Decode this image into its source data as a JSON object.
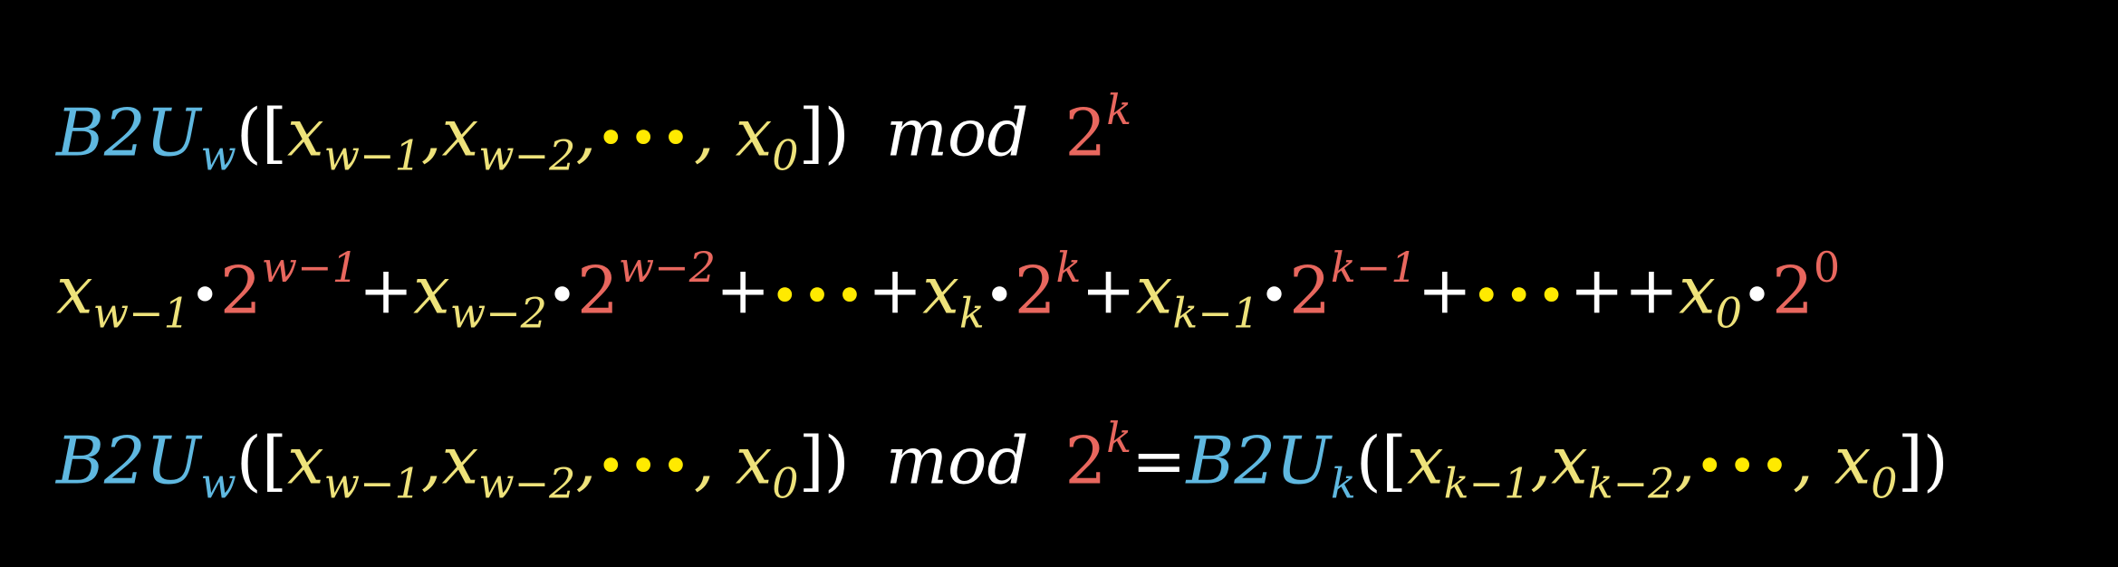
{
  "line1": {
    "func": "B2U",
    "func_sub": "w",
    "open": "([",
    "x": "x",
    "s1": "w−1",
    "s2": "w−2",
    "s0": "0",
    "comma": ",",
    "ellipsis": "•••",
    "close": "])",
    "mod": "mod",
    "base": "2",
    "exp": "k"
  },
  "line2": {
    "x": "x",
    "dot": "•",
    "plus": "+",
    "two": "2",
    "ellipsis": "•••",
    "plusplus": "++",
    "t1_sub": "w−1",
    "t1_exp": "w−1",
    "t2_sub": "w−2",
    "t2_exp": "w−2",
    "t3_sub": "k",
    "t3_exp": "k",
    "t4_sub": "k−1",
    "t4_exp": "k−1",
    "t5_sub": "0",
    "t5_exp": "0"
  },
  "line3": {
    "func": "B2U",
    "func_sub": "w",
    "open": "([",
    "x": "x",
    "s1": "w−1",
    "s2": "w−2",
    "s0": "0",
    "comma": ",",
    "ellipsis": "•••",
    "close": "])",
    "mod": "mod",
    "base": "2",
    "exp": "k",
    "eq": "=",
    "func2_sub": "k",
    "r1": "k−1",
    "r2": "k−2"
  },
  "colors": {
    "background": "#000000",
    "function": "#5fb8e0",
    "variable": "#eee27a",
    "power": "#e8675e",
    "ellipsis": "#ffea00",
    "operator": "#ffffff"
  }
}
